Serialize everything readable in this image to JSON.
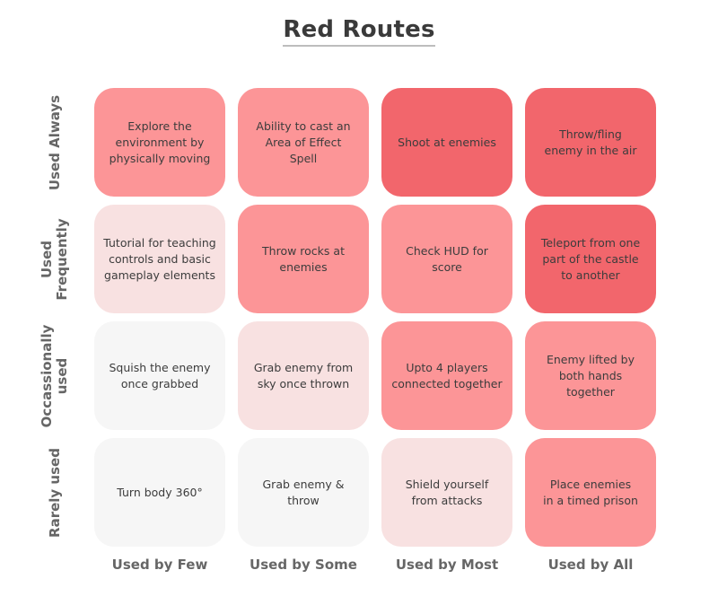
{
  "title": "Red Routes",
  "row_labels": [
    "Used Always",
    "Used\nFrequently",
    "Occassionally\nused",
    "Rarely used"
  ],
  "column_labels": [
    "Used by Few",
    "Used by Some",
    "Used by Most",
    "Used by All"
  ],
  "colors": {
    "lightest": "#f6f6f6",
    "light": "#f8e1e1",
    "medium": "#fc9597",
    "dark": "#f2666c"
  },
  "cells": [
    [
      {
        "text": "Explore the\nenvironment by\nphysically moving",
        "level": "medium"
      },
      {
        "text": "Ability to cast an\nArea of Effect\nSpell",
        "level": "medium"
      },
      {
        "text": "Shoot at enemies",
        "level": "dark"
      },
      {
        "text": "Throw/fling\nenemy in the air",
        "level": "dark"
      }
    ],
    [
      {
        "text": "Tutorial for teaching\ncontrols and basic\ngameplay elements",
        "level": "light"
      },
      {
        "text": "Throw rocks at\nenemies",
        "level": "medium"
      },
      {
        "text": "Check HUD for\nscore",
        "level": "medium"
      },
      {
        "text": "Teleport from one\npart of the castle\nto another",
        "level": "dark"
      }
    ],
    [
      {
        "text": "Squish the enemy\nonce grabbed",
        "level": "lightest"
      },
      {
        "text": "Grab enemy from\nsky once thrown",
        "level": "light"
      },
      {
        "text": "Upto 4 players\nconnected together",
        "level": "medium"
      },
      {
        "text": "Enemy lifted by\nboth hands together",
        "level": "medium"
      }
    ],
    [
      {
        "text": "Turn body 360°",
        "level": "lightest"
      },
      {
        "text": "Grab enemy &\nthrow",
        "level": "lightest"
      },
      {
        "text": "Shield yourself\nfrom attacks",
        "level": "light"
      },
      {
        "text": "Place enemies\nin a timed prison",
        "level": "medium"
      }
    ]
  ]
}
